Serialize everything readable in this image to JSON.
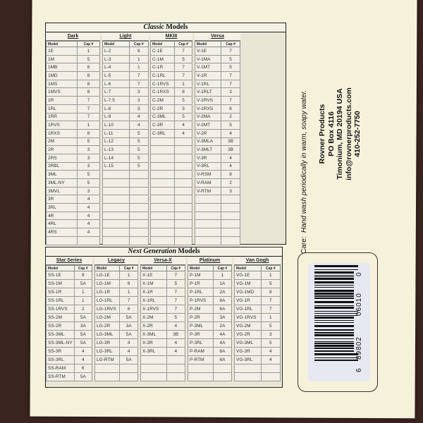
{
  "classic": {
    "title_italic": "Classic",
    "title_rest": " Models",
    "col_model": "Model",
    "col_cap": "Cap #",
    "groups": [
      {
        "name": "Dark",
        "rows": [
          [
            "1E",
            "1"
          ],
          [
            "1M",
            "5"
          ],
          [
            "1MB",
            "6"
          ],
          [
            "1MD",
            "8"
          ],
          [
            "1MS",
            "8"
          ],
          [
            "1MVS",
            "8"
          ],
          [
            "1R",
            "7"
          ],
          [
            "1RL",
            "7"
          ],
          [
            "1RR",
            "7"
          ],
          [
            "1RVS",
            "1"
          ],
          [
            "1RXS",
            "8"
          ],
          [
            "2M",
            "5"
          ],
          [
            "2R",
            "3"
          ],
          [
            "2RS",
            "3"
          ],
          [
            "2RBL",
            "3"
          ],
          [
            "3ML",
            "5"
          ],
          [
            "3ML-NY",
            "5"
          ],
          [
            "3MVL",
            "3"
          ],
          [
            "3R",
            "4"
          ],
          [
            "3RL",
            "4"
          ],
          [
            "4R",
            "4"
          ],
          [
            "4RL",
            "4"
          ],
          [
            "4RS",
            "4"
          ]
        ]
      },
      {
        "name": "Light",
        "rows": [
          [
            "L-2",
            "8"
          ],
          [
            "L-3",
            "1"
          ],
          [
            "L-4",
            "1"
          ],
          [
            "L-5",
            "7"
          ],
          [
            "L-6",
            "7"
          ],
          [
            "L-7",
            "3"
          ],
          [
            "L-7.5",
            "3"
          ],
          [
            "L-8",
            "3"
          ],
          [
            "L-9",
            "4"
          ],
          [
            "L-10",
            "4"
          ],
          [
            "L-11",
            "5"
          ],
          [
            "L-12",
            "5"
          ],
          [
            "L-13",
            "5"
          ],
          [
            "L-14",
            "5"
          ],
          [
            "L-15",
            "5"
          ]
        ]
      },
      {
        "name": "MKIII",
        "rows": [
          [
            "C-1E",
            "7"
          ],
          [
            "C-1M",
            "5"
          ],
          [
            "C-1R",
            "7"
          ],
          [
            "C-1RL",
            "7"
          ],
          [
            "C-1RVS",
            "1"
          ],
          [
            "C-1RXS",
            "8"
          ],
          [
            "C-2M",
            "5"
          ],
          [
            "C-2R",
            "3"
          ],
          [
            "C-3ML",
            "5"
          ],
          [
            "C-3R",
            "4"
          ],
          [
            "C-3RL",
            "4"
          ]
        ]
      },
      {
        "name": "Versa",
        "rows": [
          [
            "V-1E",
            "7"
          ],
          [
            "V-1MA",
            "5"
          ],
          [
            "V-1MT",
            "5"
          ],
          [
            "V-1R",
            "7"
          ],
          [
            "V-1RL",
            "7"
          ],
          [
            "V-1RLT",
            "3"
          ],
          [
            "V-1RVS",
            "7"
          ],
          [
            "V-1RXS",
            "8"
          ],
          [
            "V-2MA",
            "2"
          ],
          [
            "V-2MT",
            "5"
          ],
          [
            "V-2R",
            "4"
          ],
          [
            "V-3MLA",
            "3B"
          ],
          [
            "V-3MLT",
            "3B"
          ],
          [
            "V-3R",
            "4"
          ],
          [
            "V-3RL",
            "4"
          ],
          [
            "V-RSM",
            "8"
          ],
          [
            "V-RAM",
            "2"
          ],
          [
            "V-RTM",
            "3"
          ]
        ]
      }
    ]
  },
  "next_gen": {
    "title_italic": "Next Generation",
    "title_rest": " Models",
    "col_model": "Model",
    "col_cap": "Cap #",
    "groups": [
      {
        "name": "Star Series",
        "rows": [
          [
            "SS-1E",
            "8"
          ],
          [
            "SS-1M",
            "5A"
          ],
          [
            "SS-1R",
            "1"
          ],
          [
            "SS-1RL",
            "1"
          ],
          [
            "SS-1RVS",
            "2"
          ],
          [
            "SS-2M",
            "5A"
          ],
          [
            "SS-2R",
            "3A"
          ],
          [
            "SS-3ML",
            "5A"
          ],
          [
            "SS-3ML-NY",
            "5A"
          ],
          [
            "SS-3R",
            "4"
          ],
          [
            "SS-3RL",
            "4"
          ],
          [
            "SS-RAM",
            "6"
          ],
          [
            "SS-RTM",
            "5A"
          ]
        ]
      },
      {
        "name": "Legacy",
        "rows": [
          [
            "LG-1E",
            "1"
          ],
          [
            "LG-1M",
            "6"
          ],
          [
            "LG-1R",
            "1"
          ],
          [
            "LG-1RL",
            "7"
          ],
          [
            "LG-1RVS",
            "6"
          ],
          [
            "LG-2M",
            "5A"
          ],
          [
            "LG-2R",
            "3A"
          ],
          [
            "LG-3ML",
            "5A"
          ],
          [
            "LG-3R",
            "4"
          ],
          [
            "LG-3RL",
            "4"
          ],
          [
            "LG-RTM",
            "5A"
          ]
        ]
      },
      {
        "name": "Versa-X",
        "rows": [
          [
            "X-1E",
            "7"
          ],
          [
            "X-1M",
            "5"
          ],
          [
            "X-1R",
            "7"
          ],
          [
            "X-1RL",
            "7"
          ],
          [
            "X-1RVS",
            "7"
          ],
          [
            "X-2M",
            "5"
          ],
          [
            "X-2R",
            "4"
          ],
          [
            "X-3ML",
            "3B"
          ],
          [
            "X-3R",
            "4"
          ],
          [
            "X-3RL",
            "4"
          ]
        ]
      },
      {
        "name": "Platinum",
        "rows": [
          [
            "P-1M",
            "1"
          ],
          [
            "P-1R",
            "1A"
          ],
          [
            "P-1RL",
            "2A"
          ],
          [
            "P-1RVS",
            "8A"
          ],
          [
            "P-2M",
            "6A"
          ],
          [
            "P-2R",
            "3A"
          ],
          [
            "P-3ML",
            "2A"
          ],
          [
            "P-3R",
            "4A"
          ],
          [
            "P-3RL",
            "4A"
          ],
          [
            "P-RAM",
            "6A"
          ],
          [
            "P-RTM",
            "6A"
          ]
        ]
      },
      {
        "name": "Van Gogh",
        "rows": [
          [
            "VG-1E",
            "1"
          ],
          [
            "VG-1M",
            "5"
          ],
          [
            "VG-1MD",
            "8"
          ],
          [
            "VG-1R",
            "7"
          ],
          [
            "VG-1RL",
            "7"
          ],
          [
            "VG-1RVS",
            "1"
          ],
          [
            "VG-2M",
            "5"
          ],
          [
            "VG-2R",
            "3"
          ],
          [
            "VG-3ML",
            "5"
          ],
          [
            "VG-3R",
            "4"
          ],
          [
            "VG-3RL",
            "4"
          ]
        ]
      }
    ]
  },
  "care": {
    "label": "Care:",
    "text": "Hand wash periodically in warm, soapy water."
  },
  "address": {
    "company": "Rovner Products",
    "po_box": "PO Box 4116",
    "city": "Timonium, MD 20194  USA",
    "email": "info@rovnerproducts.com",
    "phone": "410-252-7750"
  },
  "barcode": {
    "first": "6",
    "left": "89802",
    "right": "06010",
    "check": "0"
  }
}
